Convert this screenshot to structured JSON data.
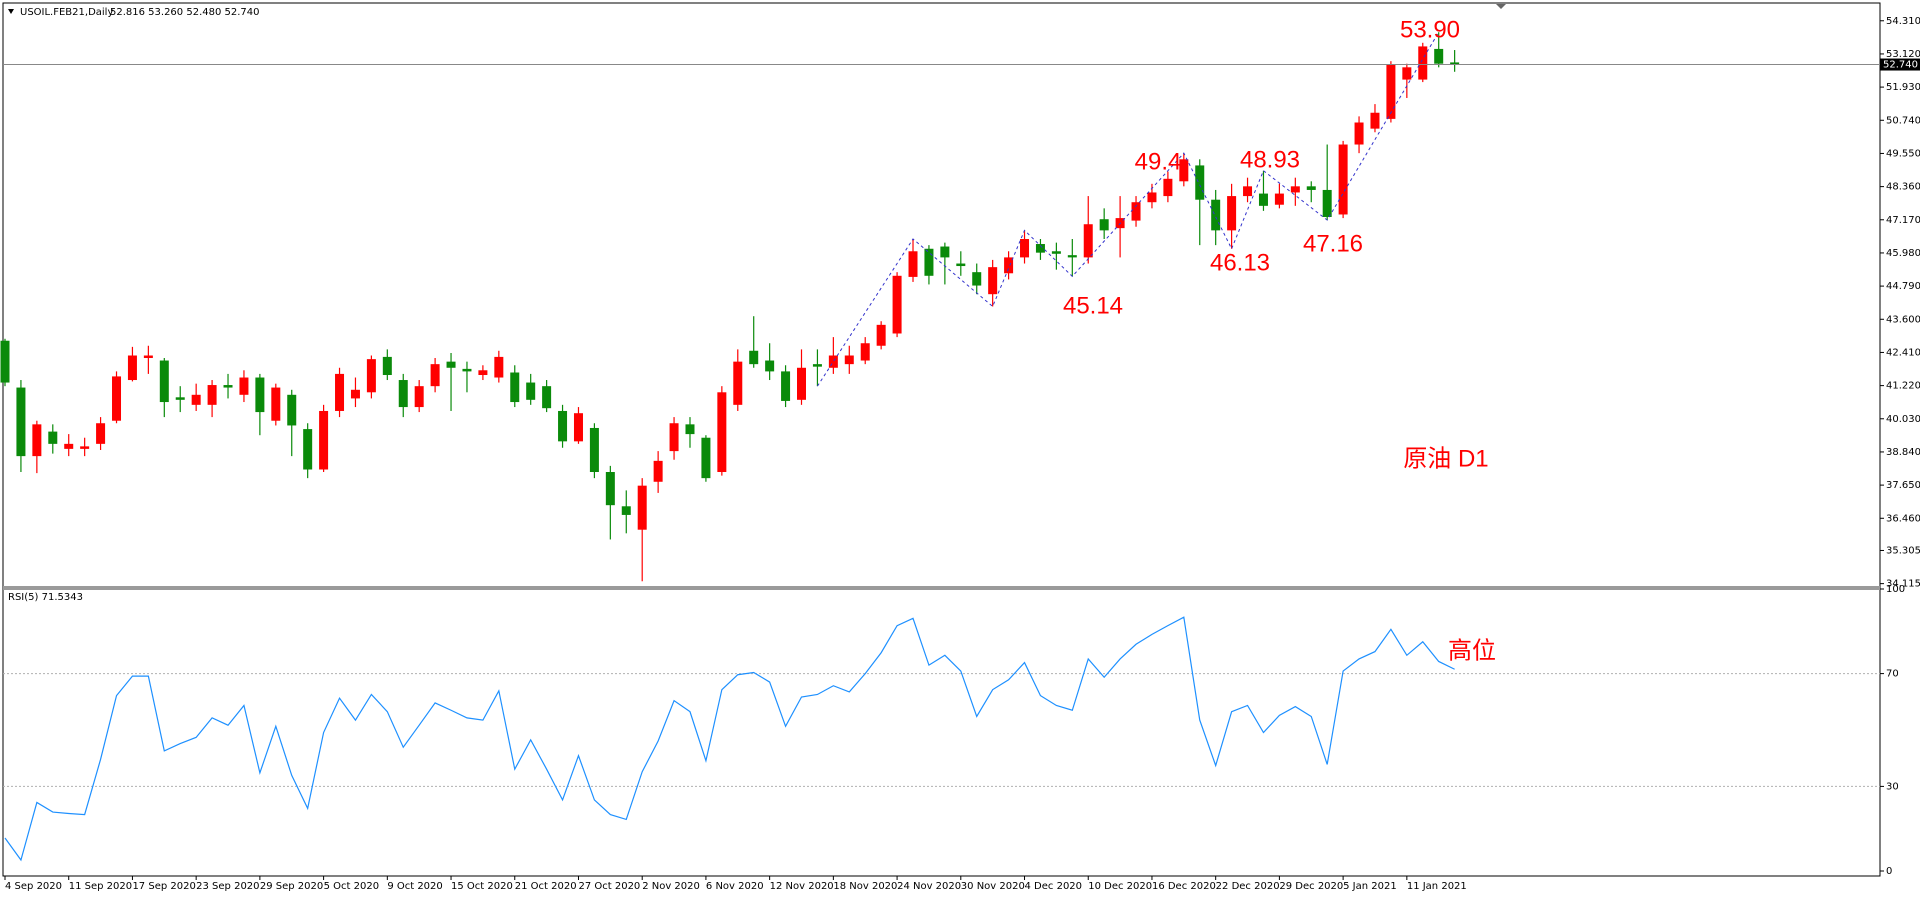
{
  "chart_data": [
    {
      "type": "candlestick",
      "title": "USOIL.FEB21,Daily",
      "subtitle": "52.816 53.260 52.480 52.740",
      "categories": [
        "4 Sep 2020",
        null,
        null,
        null,
        "11 Sep 2020",
        null,
        null,
        null,
        "17 Sep 2020",
        null,
        null,
        null,
        "23 Sep 2020",
        null,
        null,
        null,
        "29 Sep 2020",
        null,
        null,
        null,
        "5 Oct 2020",
        null,
        null,
        null,
        "9 Oct 2020",
        null,
        null,
        null,
        "15 Oct 2020",
        null,
        null,
        null,
        "21 Oct 2020",
        null,
        null,
        null,
        "27 Oct 2020",
        null,
        null,
        null,
        "2 Nov 2020",
        null,
        null,
        null,
        "6 Nov 2020",
        null,
        null,
        null,
        "12 Nov 2020",
        null,
        null,
        null,
        "18 Nov 2020",
        null,
        null,
        null,
        "24 Nov 2020",
        null,
        null,
        null,
        "30 Nov 2020",
        null,
        null,
        null,
        "4 Dec 2020",
        null,
        null,
        null,
        "10 Dec 2020",
        null,
        null,
        null,
        "16 Dec 2020",
        null,
        null,
        null,
        "22 Dec 2020",
        null,
        null,
        null,
        "29 Dec 2020",
        null,
        null,
        null,
        "5 Jan 2021",
        null,
        null,
        null,
        "11 Jan 2021",
        null,
        null,
        null
      ],
      "open": [
        42.83,
        41.15,
        38.69,
        39.57,
        38.95,
        38.95,
        39.13,
        39.96,
        41.42,
        42.21,
        42.12,
        40.8,
        40.53,
        40.53,
        41.24,
        40.89,
        41.51,
        39.96,
        40.89,
        39.66,
        38.21,
        40.31,
        40.76,
        40.98,
        42.25,
        41.42,
        40.45,
        41.2,
        42.08,
        41.82,
        41.6,
        41.51,
        41.69,
        41.33,
        41.2,
        40.31,
        39.22,
        39.7,
        38.12,
        36.89,
        36.05,
        37.77,
        38.87,
        39.83,
        39.35,
        38.12,
        40.53,
        42.47,
        42.12,
        41.73,
        40.71,
        41.99,
        41.86,
        41.99,
        42.12,
        42.65,
        43.09,
        45.12,
        46.13,
        46.21,
        45.6,
        45.29,
        44.5,
        45.25,
        45.82,
        46.3,
        46.04,
        45.9,
        45.82,
        47.19,
        46.87,
        47.14,
        47.8,
        48.02,
        48.55,
        49.12,
        47.89,
        46.79,
        48.02,
        48.11,
        47.71,
        48.15,
        48.37,
        48.24,
        47.36,
        49.87,
        50.44,
        50.79,
        52.2,
        52.2,
        53.3,
        52.816
      ],
      "high": [
        42.9,
        41.42,
        39.96,
        39.83,
        39.48,
        39.35,
        40.09,
        41.73,
        42.61,
        42.65,
        42.21,
        41.2,
        41.29,
        41.42,
        41.64,
        41.77,
        41.64,
        41.29,
        41.07,
        39.87,
        40.53,
        41.86,
        41.51,
        42.3,
        42.52,
        41.64,
        41.42,
        42.21,
        42.39,
        42.08,
        41.95,
        42.47,
        41.95,
        41.64,
        41.42,
        40.53,
        40.45,
        39.87,
        38.34,
        37.46,
        37.9,
        38.87,
        40.09,
        40.09,
        39.44,
        41.2,
        42.52,
        43.71,
        42.74,
        41.95,
        42.52,
        42.52,
        42.96,
        42.65,
        42.96,
        43.53,
        45.29,
        46.48,
        46.26,
        46.35,
        46.04,
        45.6,
        45.73,
        46.04,
        46.79,
        46.48,
        46.35,
        46.48,
        48.02,
        47.58,
        48.02,
        48.02,
        48.46,
        48.9,
        49.56,
        49.34,
        48.24,
        48.46,
        48.68,
        48.93,
        48.46,
        48.68,
        48.55,
        49.87,
        50.0,
        50.88,
        51.32,
        52.86,
        52.77,
        53.52,
        53.9,
        53.26
      ],
      "low": [
        41.2,
        38.12,
        38.08,
        38.78,
        38.69,
        38.69,
        38.91,
        39.87,
        41.37,
        41.64,
        40.09,
        40.27,
        40.31,
        40.09,
        40.76,
        40.63,
        39.44,
        39.79,
        38.69,
        37.9,
        38.12,
        40.09,
        40.45,
        40.76,
        41.42,
        40.09,
        40.27,
        40.98,
        40.31,
        40.98,
        41.42,
        41.33,
        40.45,
        40.53,
        40.27,
        38.99,
        39.13,
        37.9,
        35.7,
        35.92,
        34.2,
        37.37,
        38.56,
        38.99,
        37.77,
        37.99,
        40.31,
        41.86,
        41.42,
        40.45,
        40.53,
        41.2,
        41.64,
        41.64,
        41.99,
        42.52,
        42.96,
        44.94,
        44.85,
        44.85,
        45.16,
        44.5,
        44.06,
        45.03,
        45.6,
        45.73,
        45.38,
        45.14,
        45.6,
        46.48,
        45.82,
        46.92,
        47.58,
        47.8,
        48.37,
        46.26,
        46.26,
        46.13,
        47.8,
        47.49,
        47.58,
        47.67,
        47.8,
        47.16,
        47.23,
        49.56,
        50.31,
        50.66,
        51.54,
        52.11,
        52.64,
        52.48
      ],
      "close": [
        41.33,
        38.69,
        39.83,
        39.13,
        39.13,
        39.04,
        39.87,
        41.55,
        42.3,
        42.3,
        40.63,
        40.71,
        40.89,
        41.24,
        41.15,
        41.51,
        40.27,
        41.15,
        39.79,
        38.21,
        40.31,
        41.64,
        41.07,
        42.17,
        41.6,
        40.45,
        41.2,
        41.99,
        41.86,
        41.73,
        41.77,
        42.25,
        40.63,
        40.71,
        40.41,
        39.22,
        40.23,
        38.12,
        36.93,
        36.58,
        37.63,
        38.52,
        39.87,
        39.48,
        37.9,
        40.98,
        42.08,
        41.99,
        41.73,
        40.67,
        41.86,
        41.9,
        42.3,
        42.3,
        42.74,
        43.4,
        45.16,
        46.04,
        45.16,
        45.82,
        45.51,
        44.81,
        45.47,
        45.82,
        46.48,
        45.99,
        45.95,
        45.82,
        47.01,
        46.79,
        47.23,
        47.8,
        48.15,
        48.64,
        49.34,
        47.89,
        46.79,
        48.02,
        48.37,
        47.67,
        48.11,
        48.37,
        48.24,
        47.27,
        49.87,
        50.66,
        51.01,
        52.73,
        52.64,
        53.39,
        52.77,
        52.74
      ],
      "up_color": "#ff0000",
      "down_color": "#0a8a0a",
      "zigzag_color": "#3333cc",
      "ylim": [
        34.03,
        54.84
      ],
      "yticks": [
        {
          "value": 54.31,
          "label": "54.310"
        },
        {
          "value": 53.12,
          "label": "53.120"
        },
        {
          "value": 51.93,
          "label": "51.930"
        },
        {
          "value": 50.74,
          "label": "50.740"
        },
        {
          "value": 49.55,
          "label": "49.550"
        },
        {
          "value": 48.36,
          "label": "48.360"
        },
        {
          "value": 47.17,
          "label": "47.170"
        },
        {
          "value": 45.98,
          "label": "45.980"
        },
        {
          "value": 44.79,
          "label": "44.790"
        },
        {
          "value": 43.6,
          "label": "43.600"
        },
        {
          "value": 42.41,
          "label": "42.410"
        },
        {
          "value": 41.22,
          "label": "41.220"
        },
        {
          "value": 40.03,
          "label": "40.030"
        },
        {
          "value": 38.84,
          "label": "38.840"
        },
        {
          "value": 37.65,
          "label": "37.650"
        },
        {
          "value": 36.46,
          "label": "36.460"
        },
        35.305,
        34.115
      ],
      "grid": false,
      "last_price": {
        "value": 52.74,
        "label": "52.740"
      },
      "annotations": [
        "53.90",
        "49.4",
        "48.93",
        "46.13",
        "45.14",
        "47.16",
        "原油 D1"
      ],
      "annotation_color": "#ff0000"
    },
    {
      "type": "line",
      "title": "RSI(5) 71.5343",
      "color": "#1e90ff",
      "values": [
        11.7,
        3.9,
        24.3,
        20.9,
        20.4,
        20,
        39.6,
        62.2,
        69.1,
        69.1,
        42.6,
        45.2,
        47.4,
        54.3,
        51.7,
        58.7,
        34.8,
        51.3,
        33.9,
        22.2,
        49.1,
        61.3,
        53.5,
        62.6,
        56.5,
        43.9,
        51.7,
        59.6,
        57,
        54.3,
        53.5,
        63.9,
        36.1,
        46.5,
        36.1,
        25.2,
        40.9,
        25.2,
        20,
        18.3,
        35.2,
        46.1,
        60.4,
        56.5,
        39.1,
        64.3,
        69.6,
        70.4,
        67,
        51.3,
        61.7,
        62.6,
        65.7,
        63.5,
        70,
        77.4,
        87,
        89.6,
        73,
        76.5,
        70.9,
        54.8,
        64.3,
        67.8,
        73.9,
        62.2,
        58.7,
        57,
        75.2,
        68.7,
        75.2,
        80.4,
        83.9,
        87,
        90,
        53.5,
        37.4,
        56.5,
        58.7,
        49.1,
        55.2,
        58.3,
        54.8,
        37.8,
        70.9,
        75.2,
        77.8,
        85.7,
        76.5,
        81.3,
        74.3,
        71.5343
      ],
      "ylim": [
        0,
        100
      ],
      "yticks": [
        0,
        30,
        70,
        100
      ],
      "grid": true,
      "annotations": [
        "高位"
      ],
      "annotation_color": "#ff0000"
    }
  ]
}
